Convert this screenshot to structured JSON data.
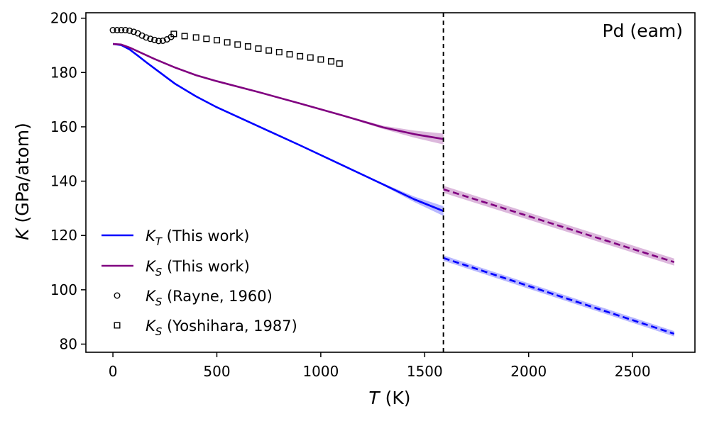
{
  "chart_data": {
    "type": "line",
    "annotation": "Pd (eam)",
    "xlabel": {
      "symbol": "T",
      "rest": " (K)"
    },
    "ylabel": {
      "symbol": "K",
      "rest": " (GPa/atom)"
    },
    "xlim": [
      -130,
      2800
    ],
    "ylim": [
      77,
      202
    ],
    "xticks": [
      0,
      500,
      1000,
      1500,
      2000,
      2500
    ],
    "yticks": [
      80,
      100,
      120,
      140,
      160,
      180,
      200
    ],
    "melting_line_x": 1590,
    "colors": {
      "KT": "#0000ff",
      "KS": "#800080",
      "markers": "#000000"
    },
    "series": [
      {
        "id": "KT_solid",
        "name": "K_T (This work)",
        "color": "#0000ff",
        "style": "solid",
        "x": [
          0,
          40,
          80,
          120,
          160,
          200,
          300,
          400,
          500,
          700,
          900,
          1100,
          1300,
          1450,
          1590
        ],
        "y": [
          190.5,
          190.1,
          188.5,
          186.2,
          183.8,
          181.5,
          175.8,
          171.2,
          167.2,
          160.2,
          153.2,
          146.0,
          138.8,
          133.3,
          129.0
        ],
        "band_halfwidth": [
          0,
          0,
          0,
          0,
          0,
          0,
          0,
          0,
          0,
          0,
          0,
          0,
          0.4,
          1.0,
          1.8
        ]
      },
      {
        "id": "KS_solid",
        "name": "K_S (This work)",
        "color": "#800080",
        "style": "solid",
        "x": [
          0,
          40,
          80,
          120,
          200,
          300,
          400,
          500,
          700,
          900,
          1100,
          1300,
          1450,
          1590
        ],
        "y": [
          190.5,
          190.3,
          189.2,
          187.8,
          185.0,
          181.8,
          179.0,
          176.8,
          172.8,
          168.6,
          164.3,
          159.8,
          157.3,
          155.5
        ],
        "band_halfwidth": [
          0,
          0,
          0,
          0,
          0,
          0,
          0,
          0,
          0,
          0,
          0.2,
          0.6,
          1.3,
          2.0
        ]
      },
      {
        "id": "KS_liquid",
        "name": "",
        "color": "#800080",
        "style": "dashed",
        "x": [
          1590,
          2700
        ],
        "y": [
          137.0,
          110.2
        ],
        "band_halfwidth": [
          1.3,
          1.3
        ]
      },
      {
        "id": "KT_liquid",
        "name": "",
        "color": "#0000ff",
        "style": "dashed",
        "x": [
          1590,
          2700
        ],
        "y": [
          111.7,
          83.8
        ],
        "band_halfwidth": [
          1.0,
          1.0
        ]
      },
      {
        "id": "KS_Rayne",
        "name": "K_S (Rayne, 1960)",
        "marker": "circle",
        "x": [
          0,
          20,
          40,
          60,
          80,
          100,
          120,
          140,
          160,
          180,
          200,
          220,
          240,
          260,
          280
        ],
        "y": [
          195.6,
          195.6,
          195.6,
          195.6,
          195.4,
          195.0,
          194.4,
          193.6,
          192.9,
          192.4,
          192.0,
          191.6,
          191.7,
          192.2,
          193.1
        ]
      },
      {
        "id": "KS_Yoshihara",
        "name": "K_S (Yoshihara, 1987)",
        "marker": "square",
        "x": [
          293,
          345,
          400,
          450,
          500,
          550,
          600,
          650,
          700,
          750,
          800,
          850,
          900,
          950,
          1000,
          1050,
          1090
        ],
        "y": [
          194.2,
          193.4,
          192.9,
          192.4,
          191.9,
          191.1,
          190.3,
          189.6,
          188.8,
          188.1,
          187.5,
          186.7,
          186.0,
          185.5,
          184.8,
          184.1,
          183.3
        ]
      }
    ],
    "legend": {
      "placement": "lower-left",
      "entries": [
        {
          "symbol": "K",
          "sub": "T",
          "text": " (This work)",
          "kind": "line",
          "color": "#0000ff"
        },
        {
          "symbol": "K",
          "sub": "S",
          "text": " (This work)",
          "kind": "line",
          "color": "#800080"
        },
        {
          "symbol": "K",
          "sub": "S",
          "text": " (Rayne, 1960)",
          "kind": "circle",
          "color": "#000000"
        },
        {
          "symbol": "K",
          "sub": "S",
          "text": " (Yoshihara, 1987)",
          "kind": "square",
          "color": "#000000"
        }
      ]
    }
  }
}
